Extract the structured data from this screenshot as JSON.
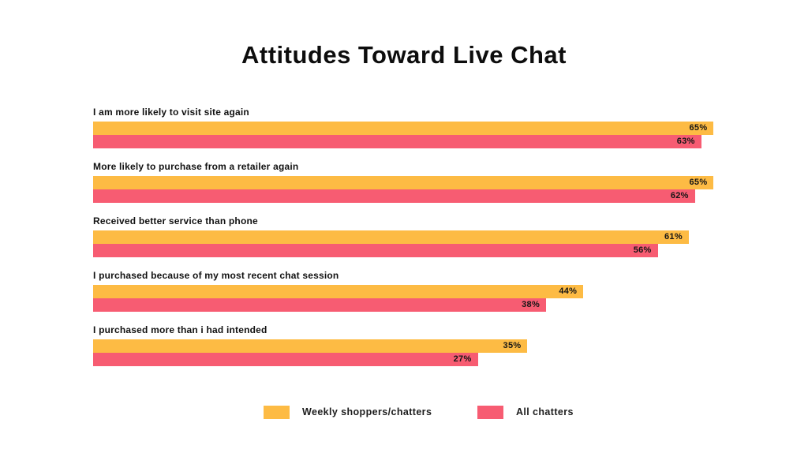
{
  "chart_data": {
    "type": "bar",
    "orientation": "horizontal",
    "title": "Attitudes Toward Live Chat",
    "categories": [
      "I am more likely to visit site again",
      "More likely to purchase from a retailer again",
      "Received better service than phone",
      "I purchased because of my most recent chat session",
      "I purchased more than i had intended"
    ],
    "series": [
      {
        "name": "Weekly shoppers/chatters",
        "color": "#FDBB44",
        "values": [
          65,
          65,
          61,
          44,
          35
        ]
      },
      {
        "name": "All chatters",
        "color": "#F75C72",
        "values": [
          63,
          62,
          56,
          38,
          27
        ]
      }
    ],
    "value_suffix": "%",
    "value_label_position": "inside-end",
    "xlim": [
      -35,
      68
    ],
    "grid": false,
    "axes_visible": false,
    "legend_position": "bottom",
    "background": "#FFFFFF",
    "text_color": "#111111"
  }
}
